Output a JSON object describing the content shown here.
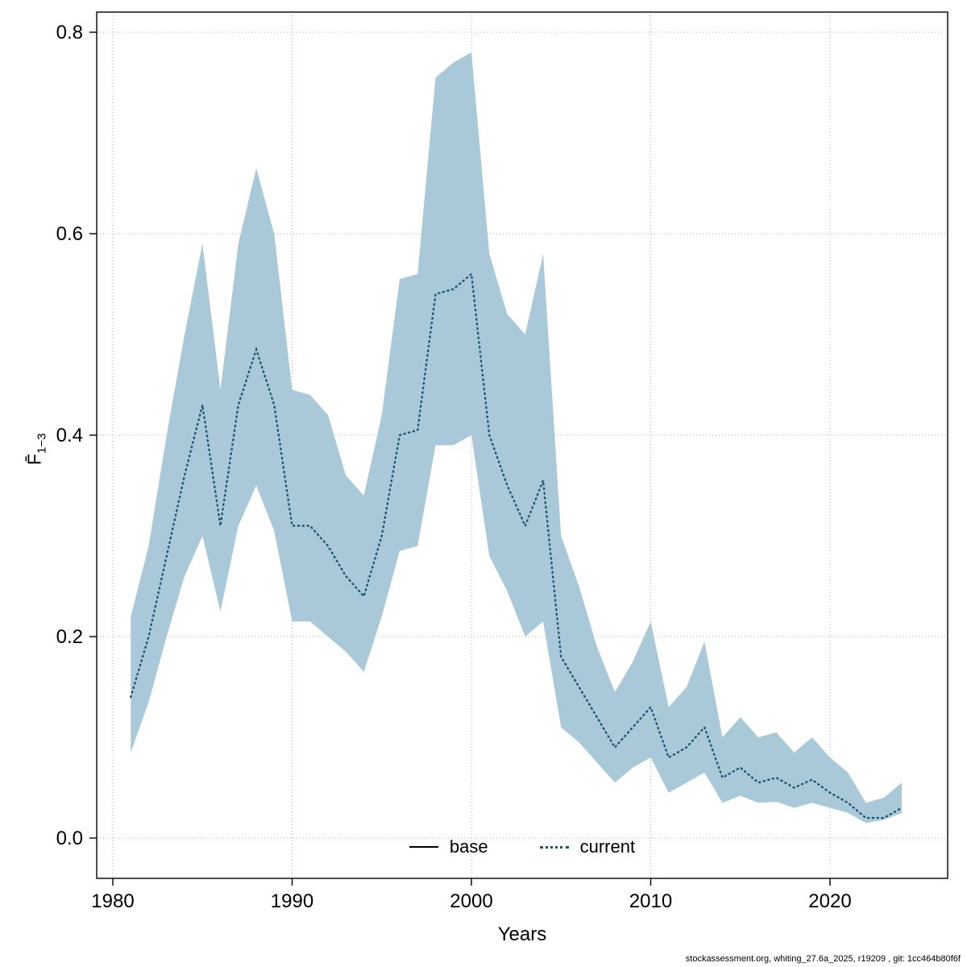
{
  "page": {
    "background": "#ffffff"
  },
  "axes": {
    "x_label": "Years",
    "y_label_main": "F̄",
    "y_label_sub": "1−3"
  },
  "legend": {
    "base_label": "base",
    "current_label": "current"
  },
  "footer": {
    "text": "stockassessment.org, whiting_27.6a_2025, r19209 , git: 1cc464b80f6f"
  },
  "chart_data": {
    "type": "line",
    "title": "",
    "xlabel": "Years",
    "ylabel": "F̄1−3",
    "x_ticks": [
      1980,
      1990,
      2000,
      2010,
      2020
    ],
    "y_ticks": [
      0.0,
      0.2,
      0.4,
      0.6,
      0.8
    ],
    "xlim": [
      1979,
      2026
    ],
    "ylim": [
      -0.04,
      0.82
    ],
    "grid": true,
    "legend_position": "bottom-center",
    "band_color": "#a9c9d8",
    "line_color": "#1d5570",
    "grid_color": "#a9a9a9",
    "years": [
      1981,
      1982,
      1983,
      1984,
      1985,
      1986,
      1987,
      1988,
      1989,
      1990,
      1991,
      1992,
      1993,
      1994,
      1995,
      1996,
      1997,
      1998,
      1999,
      2000,
      2001,
      2002,
      2003,
      2004,
      2005,
      2006,
      2007,
      2008,
      2009,
      2010,
      2011,
      2012,
      2013,
      2014,
      2015,
      2016,
      2017,
      2018,
      2019,
      2020,
      2021,
      2022,
      2023,
      2024
    ],
    "series": [
      {
        "name": "current",
        "style": "dotted",
        "color": "#1d5570",
        "values": [
          0.14,
          0.2,
          0.28,
          0.36,
          0.43,
          0.31,
          0.43,
          0.485,
          0.43,
          0.31,
          0.31,
          0.29,
          0.26,
          0.24,
          0.3,
          0.4,
          0.405,
          0.54,
          0.545,
          0.56,
          0.4,
          0.35,
          0.31,
          0.355,
          0.18,
          0.15,
          0.12,
          0.09,
          0.11,
          0.13,
          0.08,
          0.09,
          0.11,
          0.06,
          0.07,
          0.055,
          0.06,
          0.05,
          0.058,
          0.045,
          0.035,
          0.02,
          0.02,
          0.03
        ]
      },
      {
        "name": "base",
        "style": "solid",
        "color": "#000000",
        "values": null
      }
    ],
    "band": {
      "name": "confidence-band",
      "upper": [
        0.22,
        0.29,
        0.4,
        0.5,
        0.59,
        0.445,
        0.59,
        0.665,
        0.6,
        0.445,
        0.44,
        0.42,
        0.36,
        0.34,
        0.42,
        0.555,
        0.56,
        0.755,
        0.77,
        0.78,
        0.58,
        0.52,
        0.5,
        0.58,
        0.3,
        0.25,
        0.19,
        0.145,
        0.175,
        0.215,
        0.13,
        0.15,
        0.195,
        0.1,
        0.12,
        0.1,
        0.105,
        0.085,
        0.1,
        0.08,
        0.065,
        0.035,
        0.04,
        0.055
      ],
      "lower": [
        0.085,
        0.135,
        0.2,
        0.26,
        0.3,
        0.225,
        0.31,
        0.35,
        0.305,
        0.215,
        0.215,
        0.2,
        0.185,
        0.165,
        0.22,
        0.285,
        0.29,
        0.39,
        0.39,
        0.4,
        0.28,
        0.245,
        0.2,
        0.215,
        0.11,
        0.095,
        0.075,
        0.055,
        0.07,
        0.08,
        0.045,
        0.055,
        0.065,
        0.035,
        0.042,
        0.035,
        0.036,
        0.03,
        0.035,
        0.03,
        0.025,
        0.015,
        0.018,
        0.025
      ]
    }
  }
}
